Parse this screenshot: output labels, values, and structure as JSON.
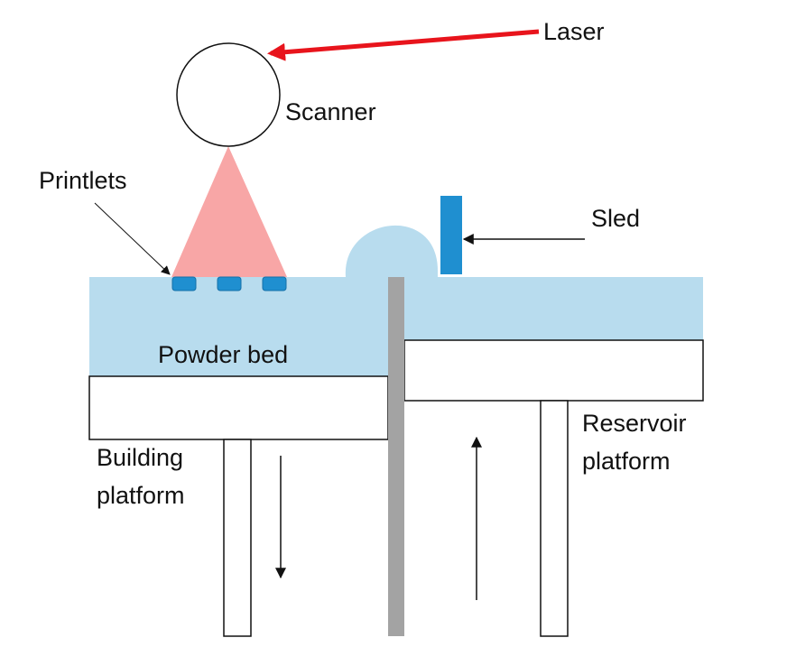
{
  "labels": {
    "laser": "Laser",
    "scanner": "Scanner",
    "printlets": "Printlets",
    "sled": "Sled",
    "powder_bed": "Powder bed",
    "building_platform": [
      "Building",
      "platform"
    ],
    "reservoir_platform": [
      "Reservoir",
      "platform"
    ]
  },
  "colors": {
    "laser_arrow": "#e8141c",
    "laser_beam": "#f8a6a6",
    "powder": "#b8dcee",
    "printlet": "#1f8fd0",
    "sled": "#1f8fd0",
    "powder_heap": "#b8dcee",
    "divider_wall": "#a3a3a3",
    "outline": "#111111"
  },
  "printlet_count": 3
}
